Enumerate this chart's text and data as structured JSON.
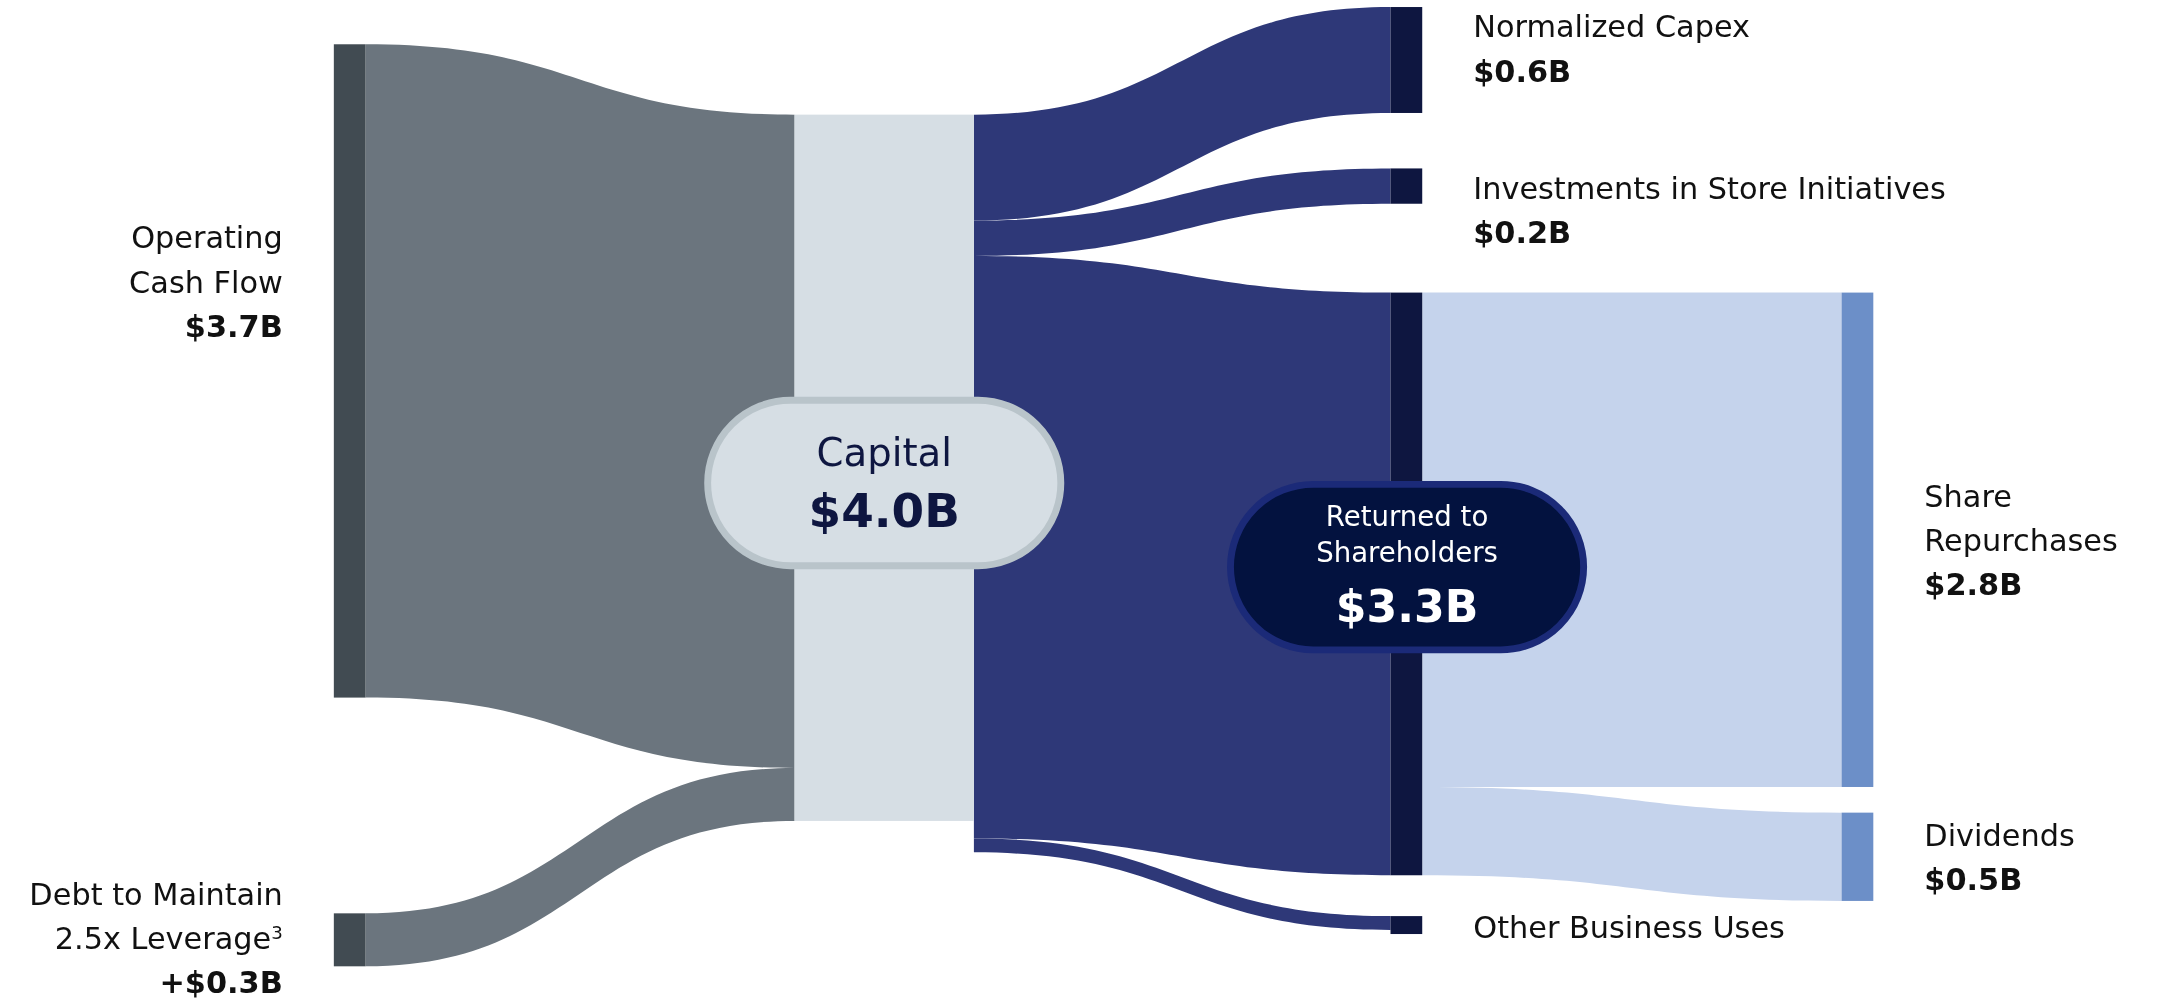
{
  "chart_data": {
    "type": "other",
    "categories": [
      "Operating\nCash Flow",
      "Debt to Maintain\n2.5x Leverage$^{3}$",
      "Capital",
      "Normalized Capex",
      "Investments in Store Initiatives",
      "Returned to\nShareholders",
      "Other Business Uses",
      "Share\nRepurchases",
      "Dividends"
    ],
    "values": [
      3.7,
      0.3,
      4.0,
      0.6,
      0.2,
      3.3,
      null,
      2.8,
      0.5
    ],
    "value_labels": [
      "$3.7B",
      "+$0.3B",
      "$4.0B",
      "$0.6B",
      "$0.2B",
      "$3.3B",
      null,
      "$2.8B",
      "$0.5B"
    ],
    "colors": [
      "#414b52",
      "#414b52",
      "#d6dee4",
      "#0e1640",
      "#0e1640",
      "#0e1640",
      "#0e1640",
      "#6c8fc8",
      "#6c8fc8"
    ]
  }
}
